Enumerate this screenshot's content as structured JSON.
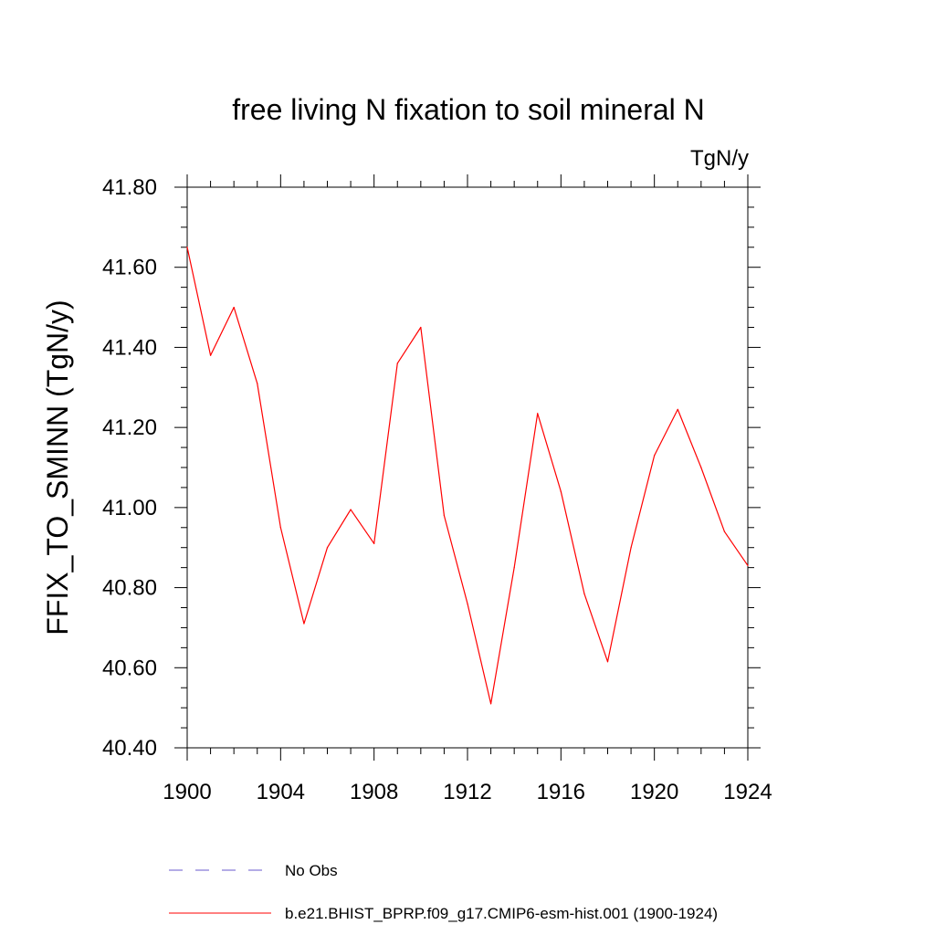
{
  "chart_data": {
    "type": "line",
    "title": "free living N fixation to soil mineral N",
    "units_label": "TgN/y",
    "ylabel": "FFIX_TO_SMINN  (TgN/y)",
    "xlabel": "",
    "xlim": [
      1900,
      1924
    ],
    "ylim": [
      40.4,
      41.8
    ],
    "x_ticks": [
      1900,
      1904,
      1908,
      1912,
      1916,
      1920,
      1924
    ],
    "x_tick_labels": [
      "1900",
      "1904",
      "1908",
      "1912",
      "1916",
      "1920",
      "1924"
    ],
    "y_ticks": [
      40.4,
      40.6,
      40.8,
      41.0,
      41.2,
      41.4,
      41.6,
      41.8
    ],
    "y_tick_labels": [
      "40.40",
      "40.60",
      "40.80",
      "41.00",
      "41.20",
      "41.40",
      "41.60",
      "41.80"
    ],
    "x_minor_step": 1,
    "y_minor_step": 0.05,
    "grid": false,
    "legend_position": "bottom",
    "series": [
      {
        "name": "b.e21.BHIST_BPRP.f09_g17.CMIP6-esm-hist.001 (1900-1924)",
        "color": "#ff0000",
        "dash": "solid",
        "x": [
          1900,
          1901,
          1902,
          1903,
          1904,
          1905,
          1906,
          1907,
          1908,
          1909,
          1910,
          1911,
          1912,
          1913,
          1914,
          1915,
          1916,
          1917,
          1918,
          1919,
          1920,
          1921,
          1922,
          1923,
          1924
        ],
        "values": [
          41.65,
          41.38,
          41.5,
          41.31,
          40.95,
          40.71,
          40.9,
          40.995,
          40.91,
          41.36,
          41.45,
          40.98,
          40.76,
          40.51,
          40.85,
          41.235,
          41.04,
          40.785,
          40.615,
          40.9,
          41.13,
          41.245,
          41.1,
          40.94,
          40.855
        ]
      }
    ],
    "legend": [
      {
        "label": "No Obs",
        "color": "#6a5acd",
        "dash": "dashed"
      },
      {
        "label": "b.e21.BHIST_BPRP.f09_g17.CMIP6-esm-hist.001 (1900-1924)",
        "color": "#ff0000",
        "dash": "solid"
      }
    ]
  }
}
